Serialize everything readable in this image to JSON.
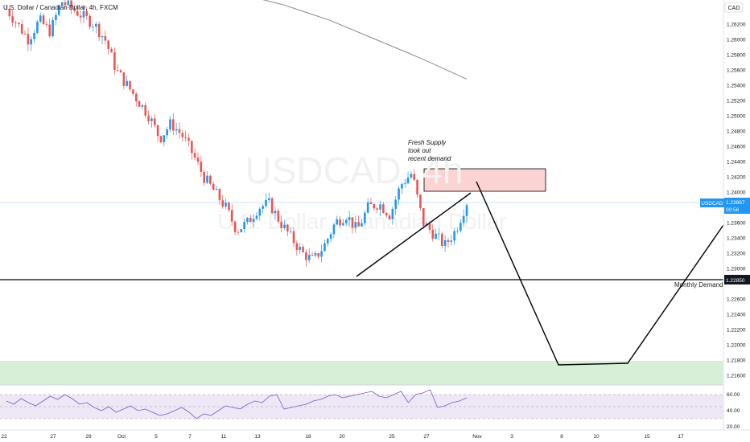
{
  "header": {
    "title": "U.S. Dollar / Canadian Dollar, 4h, FXCM"
  },
  "watermark": {
    "symbol": "USDCAD, 4h",
    "description": "U.S. Dollar / Canadian Dollar"
  },
  "currency_label": "CAD",
  "price_tag": {
    "symbol": "USDCAD",
    "price": "1.23867",
    "countdown": "00:56"
  },
  "level_tag": "1.22850",
  "annotations": {
    "supply_lines": [
      "Fresh Supply",
      "took out",
      "recent demand"
    ],
    "monthly_demand": "Monthly Demand"
  },
  "colors": {
    "up": "#2196f3",
    "down": "#ef5350",
    "supply_fill": "#fbd3d2",
    "demand_fill": "#d7eed7",
    "rsi_band": "#ede7f6",
    "rsi_line": "#7e57c2",
    "ma_line": "#888888",
    "last_price": "#2196f3"
  },
  "chart_data": {
    "type": "candlestick",
    "title": "U.S. Dollar / Canadian Dollar, 4h, FXCM",
    "symbol": "USDCAD",
    "timeframe": "4h",
    "price_axis": {
      "range": [
        1.214,
        1.266
      ],
      "ticks": [
        "1.26200",
        "1.26000",
        "1.25800",
        "1.25600",
        "1.25400",
        "1.25200",
        "1.25000",
        "1.24800",
        "1.24600",
        "1.24400",
        "1.24200",
        "1.24000",
        "1.23600",
        "1.23400",
        "1.23200",
        "1.23000",
        "1.22600",
        "1.22400",
        "1.22200",
        "1.22000",
        "1.21800",
        "1.21600"
      ]
    },
    "time_axis": {
      "labels": [
        "22",
        "27",
        "29",
        "Oct",
        "5",
        "7",
        "11",
        "13",
        "18",
        "20",
        "25",
        "27",
        "Nov",
        "3",
        "8",
        "10",
        "15",
        "17"
      ]
    },
    "last_price": 1.23867,
    "levels": [
      {
        "name": "Monthly Demand",
        "price": 1.2285
      }
    ],
    "zones": [
      {
        "name": "Fresh Supply",
        "from": 1.2403,
        "to": 1.2433
      },
      {
        "name": "Demand",
        "from": 1.2145,
        "to": 1.218
      }
    ],
    "trendline": {
      "from": 1.229,
      "to": 1.2412
    },
    "projection": [
      1.2413,
      1.2173,
      1.2175,
      1.2357
    ],
    "moving_average": [
      1.2665,
      1.266,
      1.2645,
      1.2625,
      1.26,
      1.2575,
      1.2548
    ],
    "close_path": [
      1.264,
      1.262,
      1.26,
      1.2625,
      1.261,
      1.265,
      1.264,
      1.263,
      1.262,
      1.26,
      1.256,
      1.254,
      1.252,
      1.25,
      1.247,
      1.249,
      1.2475,
      1.245,
      1.242,
      1.24,
      1.238,
      1.235,
      1.236,
      1.238,
      1.2385,
      1.236,
      1.234,
      1.232,
      1.231,
      1.233,
      1.236,
      1.237,
      1.235,
      1.238,
      1.2385,
      1.237,
      1.241,
      1.2425,
      1.236,
      1.2345,
      1.233,
      1.235,
      1.2387
    ],
    "rsi": {
      "ticks": [
        "60.00",
        "40.00",
        "20.00"
      ],
      "range": [
        20,
        70
      ],
      "band": [
        30,
        60
      ],
      "values": [
        52,
        48,
        55,
        50,
        46,
        52,
        58,
        54,
        60,
        55,
        48,
        50,
        44,
        40,
        45,
        38,
        42,
        46,
        40,
        42,
        38,
        34,
        36,
        40,
        44,
        38,
        30,
        36,
        34,
        40,
        46,
        44,
        42,
        48,
        52,
        50,
        58,
        60,
        42,
        44,
        46,
        48,
        52,
        54,
        58,
        60,
        56,
        58,
        60,
        62,
        64,
        58,
        56,
        60,
        64,
        50,
        60,
        62,
        66,
        44,
        46,
        50,
        52,
        56
      ]
    }
  }
}
